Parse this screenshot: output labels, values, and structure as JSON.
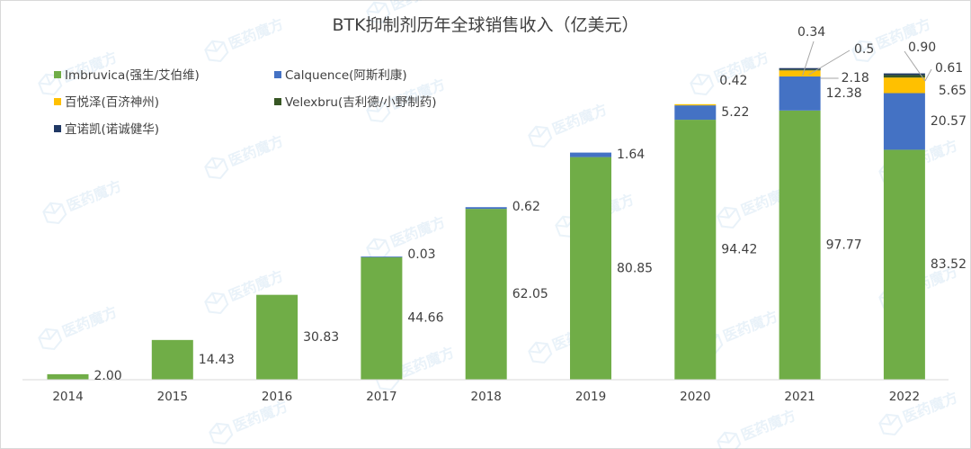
{
  "chart_data": {
    "type": "bar",
    "stacked": true,
    "title": "BTK抑制剂历年全球销售收入（亿美元）",
    "xlabel": "",
    "ylabel": "",
    "ylim": [
      0,
      135
    ],
    "grid": false,
    "legend_position": "top-left",
    "categories": [
      "2014",
      "2015",
      "2016",
      "2017",
      "2018",
      "2019",
      "2020",
      "2021",
      "2022"
    ],
    "series": [
      {
        "name": "Imbruvica(强生/艾伯维)",
        "color": "#70ad47",
        "values": [
          2.0,
          14.43,
          30.83,
          44.66,
          62.05,
          80.85,
          94.42,
          97.77,
          83.52
        ],
        "labels": [
          "2.00",
          "14.43",
          "30.83",
          "44.66",
          "62.05",
          "80.85",
          "94.42",
          "97.77",
          "83.52"
        ]
      },
      {
        "name": "Calquence(阿斯利康)",
        "color": "#4472c4",
        "values": [
          null,
          null,
          null,
          0.03,
          0.62,
          1.64,
          5.22,
          12.38,
          20.57
        ],
        "labels": [
          null,
          null,
          null,
          "0.03",
          "0.62",
          "1.64",
          "5.22",
          "12.38",
          "20.57"
        ]
      },
      {
        "name": "百悦泽(百济神州)",
        "color": "#ffc000",
        "values": [
          null,
          null,
          null,
          null,
          null,
          null,
          0.42,
          2.18,
          5.65
        ],
        "labels": [
          null,
          null,
          null,
          null,
          null,
          null,
          "0.42",
          "2.18",
          "5.65"
        ]
      },
      {
        "name": "Velexbru(吉利德/小野制药)",
        "color": "#375623",
        "values": [
          null,
          null,
          null,
          null,
          null,
          null,
          null,
          0.34,
          0.9
        ],
        "labels": [
          null,
          null,
          null,
          null,
          null,
          null,
          null,
          "0.34",
          "0.90"
        ]
      },
      {
        "name": "宜诺凯(诺诚健华)",
        "color": "#203864",
        "values": [
          null,
          null,
          null,
          null,
          null,
          null,
          null,
          0.5,
          0.61
        ],
        "labels": [
          null,
          null,
          null,
          null,
          null,
          null,
          null,
          "0.5",
          "0.61"
        ]
      }
    ]
  },
  "watermark": {
    "brand": "医药魔方",
    "icon": "cube-icon"
  }
}
